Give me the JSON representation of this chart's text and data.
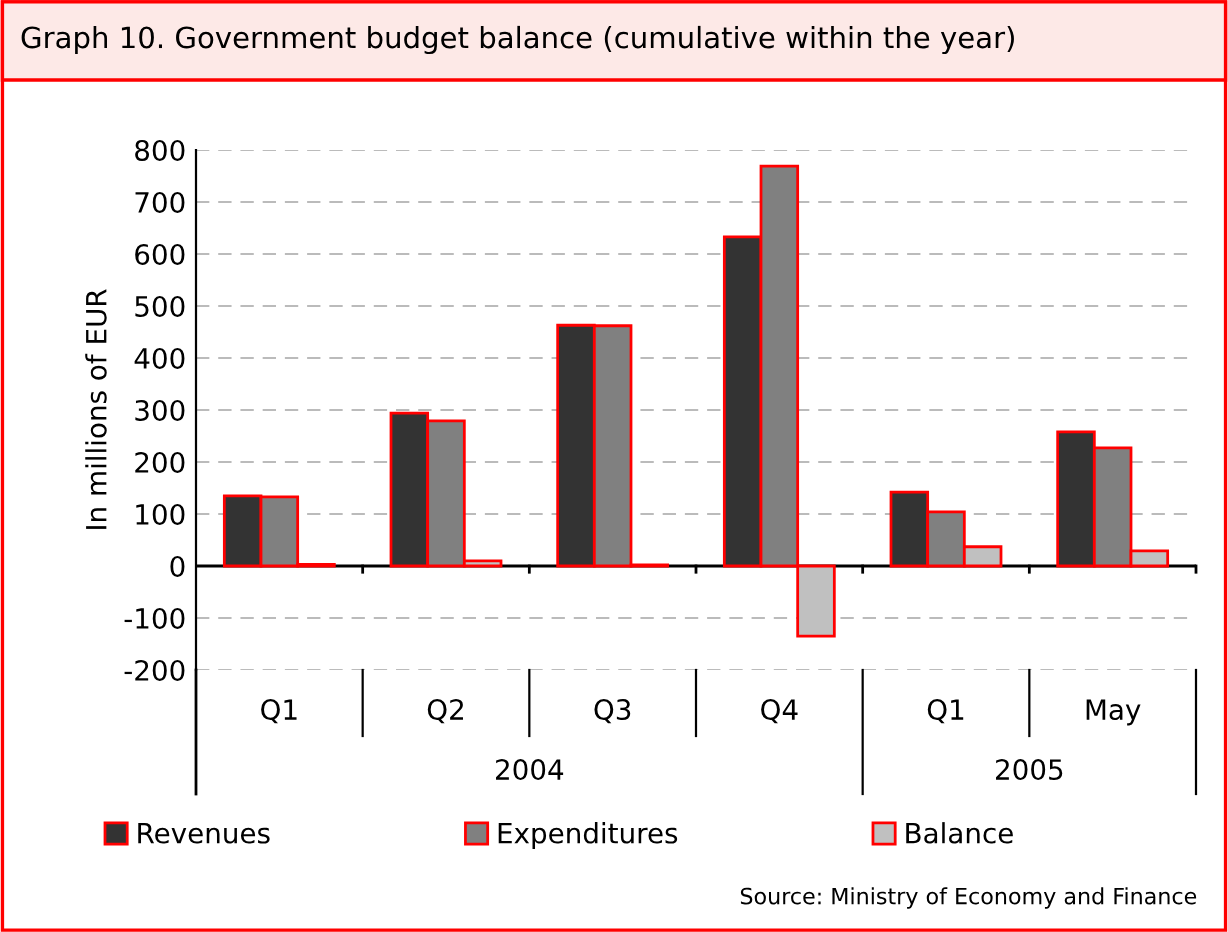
{
  "chart_data": {
    "type": "bar",
    "title": "Graph 10. Government budget balance (cumulative within the year)",
    "ylabel": "In millions of EUR",
    "categories": [
      "Q1",
      "Q2",
      "Q3",
      "Q4",
      "Q1",
      "May"
    ],
    "series": [
      {
        "name": "Revenues",
        "color": "#333333",
        "values": [
          135,
          294,
          463,
          633,
          142,
          258
        ]
      },
      {
        "name": "Expenditures",
        "color": "#808080",
        "values": [
          133,
          279,
          462,
          769,
          104,
          227
        ]
      },
      {
        "name": "Balance",
        "color": "#c0c0c0",
        "values": [
          3,
          10,
          2,
          -135,
          37,
          29
        ]
      }
    ],
    "ylim": [
      -200,
      800
    ],
    "yticks": [
      -200,
      -100,
      0,
      100,
      200,
      300,
      400,
      500,
      600,
      700,
      800
    ],
    "grid": "y",
    "legend": "bottom",
    "annotations": [
      "2004",
      "2005",
      "Source: Ministry of Economy and Finance"
    ]
  }
}
